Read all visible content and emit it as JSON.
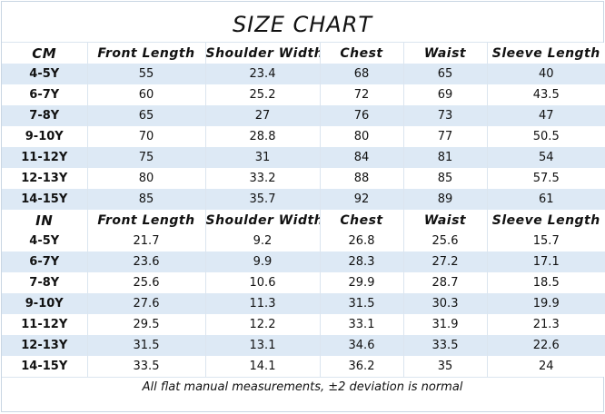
{
  "title": "SIZE CHART",
  "columns": [
    "Front Length",
    "Shoulder Width",
    "Chest",
    "Waist",
    "Sleeve Length"
  ],
  "cm": {
    "unit": "CM",
    "rows": [
      {
        "size": "4-5Y",
        "values": [
          "55",
          "23.4",
          "68",
          "65",
          "40"
        ]
      },
      {
        "size": "6-7Y",
        "values": [
          "60",
          "25.2",
          "72",
          "69",
          "43.5"
        ]
      },
      {
        "size": "7-8Y",
        "values": [
          "65",
          "27",
          "76",
          "73",
          "47"
        ]
      },
      {
        "size": "9-10Y",
        "values": [
          "70",
          "28.8",
          "80",
          "77",
          "50.5"
        ]
      },
      {
        "size": "11-12Y",
        "values": [
          "75",
          "31",
          "84",
          "81",
          "54"
        ]
      },
      {
        "size": "12-13Y",
        "values": [
          "80",
          "33.2",
          "88",
          "85",
          "57.5"
        ]
      },
      {
        "size": "14-15Y",
        "values": [
          "85",
          "35.7",
          "92",
          "89",
          "61"
        ]
      }
    ]
  },
  "in": {
    "unit": "IN",
    "rows": [
      {
        "size": "4-5Y",
        "values": [
          "21.7",
          "9.2",
          "26.8",
          "25.6",
          "15.7"
        ]
      },
      {
        "size": "6-7Y",
        "values": [
          "23.6",
          "9.9",
          "28.3",
          "27.2",
          "17.1"
        ]
      },
      {
        "size": "7-8Y",
        "values": [
          "25.6",
          "10.6",
          "29.9",
          "28.7",
          "18.5"
        ]
      },
      {
        "size": "9-10Y",
        "values": [
          "27.6",
          "11.3",
          "31.5",
          "30.3",
          "19.9"
        ]
      },
      {
        "size": "11-12Y",
        "values": [
          "29.5",
          "12.2",
          "33.1",
          "31.9",
          "21.3"
        ]
      },
      {
        "size": "12-13Y",
        "values": [
          "31.5",
          "13.1",
          "34.6",
          "33.5",
          "22.6"
        ]
      },
      {
        "size": "14-15Y",
        "values": [
          "33.5",
          "14.1",
          "36.2",
          "35",
          "24"
        ]
      }
    ]
  },
  "footer": "All flat manual measurements, ±2 deviation is normal",
  "colors": {
    "row_stripe": "#dde9f5",
    "grid_line": "#dbe5ef"
  }
}
